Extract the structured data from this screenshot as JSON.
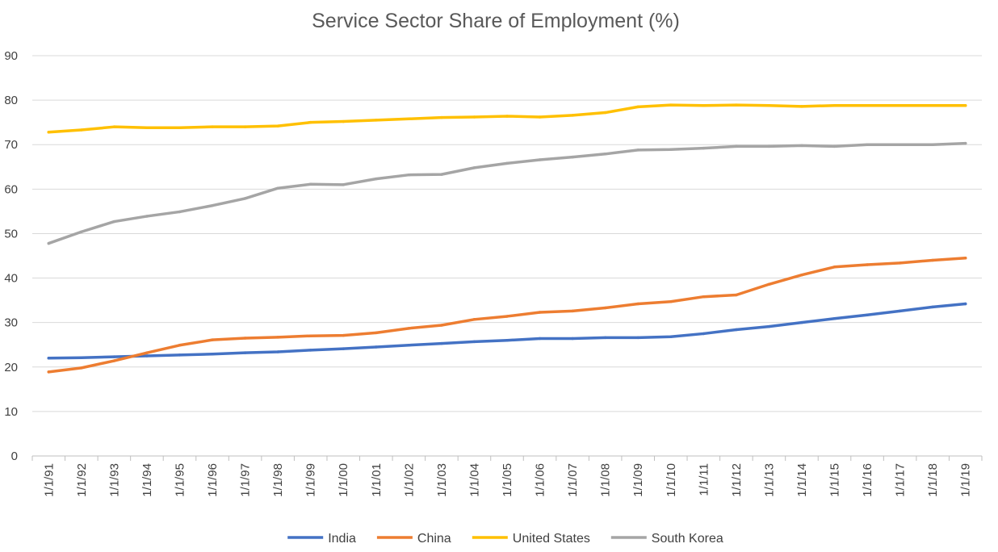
{
  "chart_data": {
    "type": "line",
    "title": "Service Sector Share of Employment (%)",
    "xlabel": "",
    "ylabel": "",
    "ylim": [
      0,
      90
    ],
    "yticks": [
      0,
      10,
      20,
      30,
      40,
      50,
      60,
      70,
      80,
      90
    ],
    "grid": true,
    "legend_position": "bottom",
    "categories": [
      "1/1/91",
      "1/1/92",
      "1/1/93",
      "1/1/94",
      "1/1/95",
      "1/1/96",
      "1/1/97",
      "1/1/98",
      "1/1/99",
      "1/1/00",
      "1/1/01",
      "1/1/02",
      "1/1/03",
      "1/1/04",
      "1/1/05",
      "1/1/06",
      "1/1/07",
      "1/1/08",
      "1/1/09",
      "1/1/10",
      "1/1/11",
      "1/1/12",
      "1/1/13",
      "1/1/14",
      "1/1/15",
      "1/1/16",
      "1/1/17",
      "1/1/18",
      "1/1/19"
    ],
    "series": [
      {
        "name": "India",
        "color": "#4472c4",
        "values": [
          22.0,
          22.1,
          22.3,
          22.5,
          22.7,
          22.9,
          23.2,
          23.4,
          23.8,
          24.1,
          24.5,
          24.9,
          25.3,
          25.7,
          26.0,
          26.4,
          26.4,
          26.6,
          26.6,
          26.8,
          27.5,
          28.4,
          29.1,
          30.0,
          30.9,
          31.7,
          32.6,
          33.5,
          34.2
        ]
      },
      {
        "name": "China",
        "color": "#ed7d31",
        "values": [
          18.9,
          19.8,
          21.4,
          23.2,
          24.9,
          26.1,
          26.5,
          26.7,
          27.0,
          27.1,
          27.7,
          28.7,
          29.4,
          30.7,
          31.4,
          32.3,
          32.6,
          33.3,
          34.2,
          34.7,
          35.8,
          36.2,
          38.6,
          40.7,
          42.5,
          43.0,
          43.4,
          44.0,
          44.5
        ]
      },
      {
        "name": "United States",
        "color": "#ffc000",
        "values": [
          72.8,
          73.3,
          74.0,
          73.8,
          73.8,
          74.0,
          74.0,
          74.2,
          75.0,
          75.2,
          75.5,
          75.8,
          76.1,
          76.2,
          76.4,
          76.2,
          76.6,
          77.2,
          78.5,
          78.9,
          78.8,
          78.9,
          78.8,
          78.6,
          78.8,
          78.8,
          78.8,
          78.8,
          78.8
        ]
      },
      {
        "name": "South Korea",
        "color": "#a5a5a5",
        "values": [
          47.8,
          50.4,
          52.7,
          53.9,
          54.9,
          56.3,
          57.9,
          60.2,
          61.1,
          61.0,
          62.3,
          63.2,
          63.3,
          64.8,
          65.8,
          66.6,
          67.2,
          67.9,
          68.8,
          68.9,
          69.2,
          69.6,
          69.6,
          69.8,
          69.6,
          70.0,
          70.0,
          70.0,
          70.3
        ]
      }
    ]
  }
}
